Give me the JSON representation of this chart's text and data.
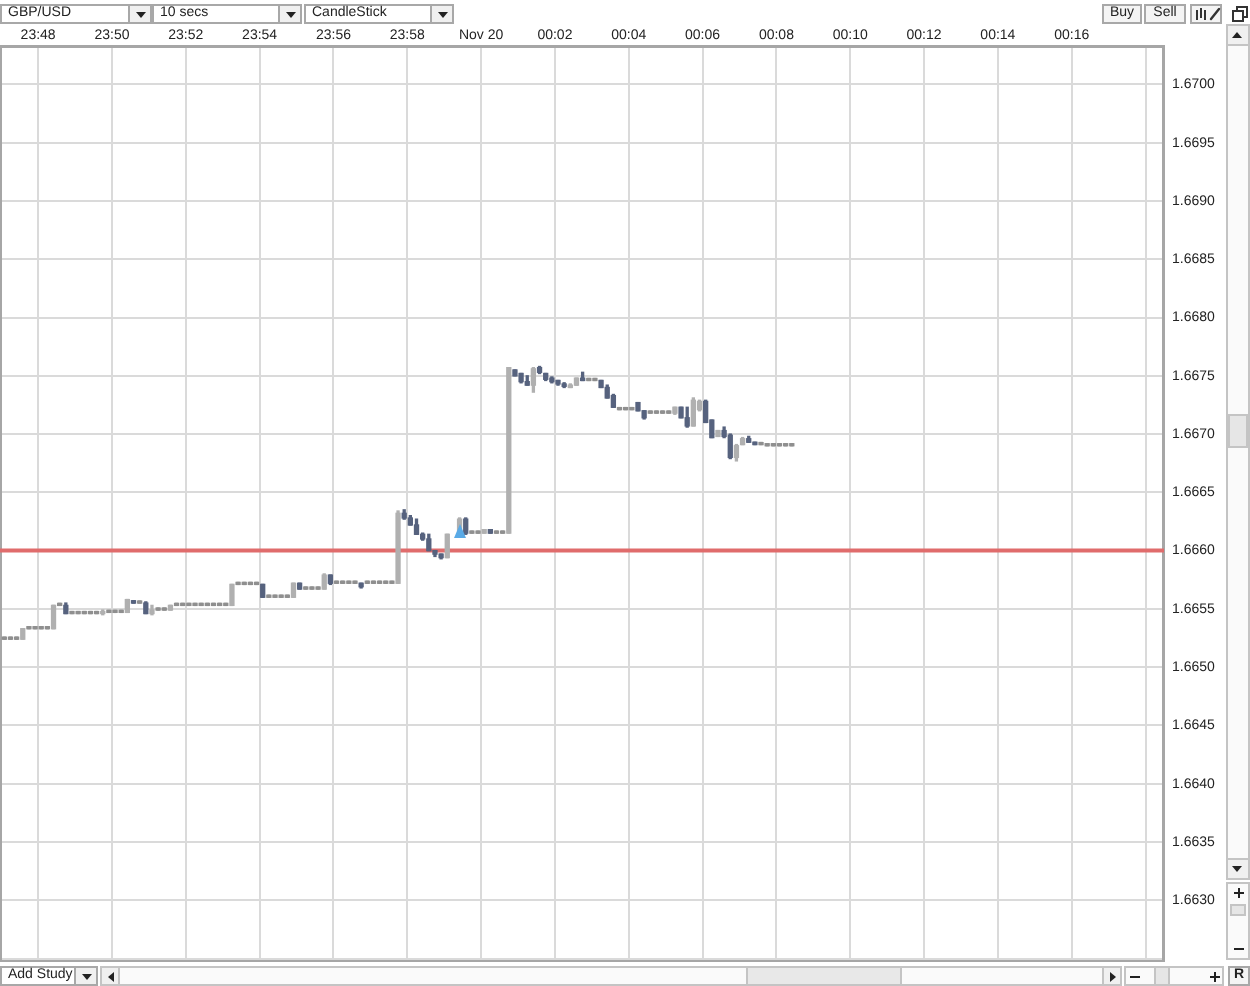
{
  "chart_data": {
    "type": "candlestick",
    "title": "GBP/USD",
    "annotations": [
      "10 secs",
      "CandleStick",
      "Buy",
      "Sell",
      "Add Study",
      "R"
    ],
    "x": [
      "--11-19T23:47:05",
      "--11-19T23:47:15",
      "--11-19T23:47:25",
      "--11-19T23:47:35",
      "--11-19T23:47:45",
      "--11-19T23:47:55",
      "--11-19T23:48:05",
      "--11-19T23:48:15",
      "--11-19T23:48:25",
      "--11-19T23:48:35",
      "--11-19T23:48:45",
      "--11-19T23:48:55",
      "--11-19T23:49:05",
      "--11-19T23:49:15",
      "--11-19T23:49:25",
      "--11-19T23:49:35",
      "--11-19T23:49:45",
      "--11-19T23:49:55",
      "--11-19T23:50:05",
      "--11-19T23:50:15",
      "--11-19T23:50:25",
      "--11-19T23:50:35",
      "--11-19T23:50:45",
      "--11-19T23:50:55",
      "--11-19T23:51:05",
      "--11-19T23:51:15",
      "--11-19T23:51:25",
      "--11-19T23:51:35",
      "--11-19T23:51:45",
      "--11-19T23:51:55",
      "--11-19T23:52:05",
      "--11-19T23:52:15",
      "--11-19T23:52:25",
      "--11-19T23:52:35",
      "--11-19T23:52:45",
      "--11-19T23:52:55",
      "--11-19T23:53:05",
      "--11-19T23:53:15",
      "--11-19T23:53:25",
      "--11-19T23:53:35",
      "--11-19T23:53:45",
      "--11-19T23:53:55",
      "--11-19T23:54:05",
      "--11-19T23:54:15",
      "--11-19T23:54:25",
      "--11-19T23:54:35",
      "--11-19T23:54:45",
      "--11-19T23:54:55",
      "--11-19T23:55:05",
      "--11-19T23:55:15",
      "--11-19T23:55:25",
      "--11-19T23:55:35",
      "--11-19T23:55:45",
      "--11-19T23:55:55",
      "--11-19T23:56:05",
      "--11-19T23:56:15",
      "--11-19T23:56:25",
      "--11-19T23:56:35",
      "--11-19T23:56:45",
      "--11-19T23:56:55",
      "--11-19T23:57:05",
      "--11-19T23:57:15",
      "--11-19T23:57:25",
      "--11-19T23:57:35",
      "--11-19T23:57:45",
      "--11-19T23:57:55",
      "--11-19T23:58:05",
      "--11-19T23:58:15",
      "--11-19T23:58:25",
      "--11-19T23:58:35",
      "--11-19T23:58:45",
      "--11-19T23:58:55",
      "--11-19T23:59:05",
      "--11-19T23:59:25",
      "--11-19T23:59:35",
      "--11-19T23:59:45",
      "--11-19T23:59:55",
      "--11-20T00:00:05",
      "--11-20T00:00:15",
      "--11-20T00:00:25",
      "--11-20T00:00:35",
      "--11-20T00:00:45",
      "--11-20T00:00:55",
      "--11-20T00:01:05",
      "--11-20T00:01:15",
      "--11-20T00:01:25",
      "--11-20T00:01:35",
      "--11-20T00:01:45",
      "--11-20T00:01:55",
      "--11-20T00:02:05",
      "--11-20T00:02:15",
      "--11-20T00:02:25",
      "--11-20T00:02:35",
      "--11-20T00:02:45",
      "--11-20T00:02:55",
      "--11-20T00:03:05",
      "--11-20T00:03:15",
      "--11-20T00:03:25",
      "--11-20T00:03:35",
      "--11-20T00:03:45",
      "--11-20T00:03:55",
      "--11-20T00:04:05",
      "--11-20T00:04:15",
      "--11-20T00:04:25",
      "--11-20T00:04:35",
      "--11-20T00:04:45",
      "--11-20T00:04:55",
      "--11-20T00:05:05",
      "--11-20T00:05:15",
      "--11-20T00:05:25",
      "--11-20T00:05:35",
      "--11-20T00:05:45",
      "--11-20T00:05:55",
      "--11-20T00:06:05",
      "--11-20T00:06:15",
      "--11-20T00:06:25",
      "--11-20T00:06:35",
      "--11-20T00:06:45",
      "--11-20T00:06:55",
      "--11-20T00:07:05",
      "--11-20T00:07:15",
      "--11-20T00:07:25",
      "--11-20T00:07:35",
      "--11-20T00:07:45",
      "--11-20T00:07:55",
      "--11-20T00:08:05",
      "--11-20T00:08:15",
      "--11-20T00:08:25"
    ],
    "ohlc": [
      [
        1.66524,
        1.66524,
        1.66524,
        1.66524
      ],
      [
        1.66524,
        1.66524,
        1.66524,
        1.66524
      ],
      [
        1.66524,
        1.66524,
        1.66524,
        1.66524
      ],
      [
        1.66524,
        1.66533,
        1.66524,
        1.66533
      ],
      [
        1.66533,
        1.66533,
        1.66533,
        1.66533
      ],
      [
        1.66533,
        1.66533,
        1.66533,
        1.66533
      ],
      [
        1.66533,
        1.66533,
        1.66533,
        1.66533
      ],
      [
        1.66533,
        1.66533,
        1.66533,
        1.66533
      ],
      [
        1.66533,
        1.66553,
        1.66533,
        1.66553
      ],
      [
        1.66553,
        1.66553,
        1.66553,
        1.66553
      ],
      [
        1.66553,
        1.66555,
        1.66546,
        1.66546
      ],
      [
        1.66546,
        1.66546,
        1.66546,
        1.66546
      ],
      [
        1.66546,
        1.66546,
        1.66546,
        1.66546
      ],
      [
        1.66546,
        1.66546,
        1.66546,
        1.66546
      ],
      [
        1.66546,
        1.66546,
        1.66546,
        1.66546
      ],
      [
        1.66546,
        1.66546,
        1.66546,
        1.66546
      ],
      [
        1.66546,
        1.66549,
        1.66545,
        1.66547
      ],
      [
        1.66547,
        1.66547,
        1.66547,
        1.66547
      ],
      [
        1.66547,
        1.66547,
        1.66547,
        1.66547
      ],
      [
        1.66547,
        1.66547,
        1.66547,
        1.66547
      ],
      [
        1.66547,
        1.66558,
        1.66547,
        1.66558
      ],
      [
        1.66557,
        1.66557,
        1.66555,
        1.66555
      ],
      [
        1.66555,
        1.66555,
        1.66555,
        1.66555
      ],
      [
        1.66555,
        1.66556,
        1.66546,
        1.66546
      ],
      [
        1.66546,
        1.66553,
        1.66545,
        1.66549
      ],
      [
        1.66549,
        1.66549,
        1.66549,
        1.66549
      ],
      [
        1.66549,
        1.66549,
        1.66549,
        1.66549
      ],
      [
        1.66549,
        1.66553,
        1.66549,
        1.66553
      ],
      [
        1.66553,
        1.66553,
        1.66553,
        1.66553
      ],
      [
        1.66553,
        1.66553,
        1.66553,
        1.66553
      ],
      [
        1.66553,
        1.66553,
        1.66553,
        1.66553
      ],
      [
        1.66553,
        1.66553,
        1.66553,
        1.66553
      ],
      [
        1.66553,
        1.66553,
        1.66553,
        1.66553
      ],
      [
        1.66553,
        1.66553,
        1.66553,
        1.66553
      ],
      [
        1.66553,
        1.66553,
        1.66553,
        1.66553
      ],
      [
        1.66553,
        1.66553,
        1.66553,
        1.66553
      ],
      [
        1.66553,
        1.66553,
        1.66553,
        1.66553
      ],
      [
        1.66553,
        1.66571,
        1.66553,
        1.66571
      ],
      [
        1.66571,
        1.66571,
        1.66571,
        1.66571
      ],
      [
        1.66571,
        1.66571,
        1.66571,
        1.66571
      ],
      [
        1.66571,
        1.66571,
        1.66571,
        1.66571
      ],
      [
        1.66571,
        1.66571,
        1.66571,
        1.66571
      ],
      [
        1.66571,
        1.66571,
        1.6656,
        1.6656
      ],
      [
        1.6656,
        1.6656,
        1.6656,
        1.6656
      ],
      [
        1.6656,
        1.6656,
        1.6656,
        1.6656
      ],
      [
        1.6656,
        1.6656,
        1.6656,
        1.6656
      ],
      [
        1.6656,
        1.6656,
        1.6656,
        1.6656
      ],
      [
        1.6656,
        1.66572,
        1.6656,
        1.66572
      ],
      [
        1.66572,
        1.66572,
        1.66567,
        1.66567
      ],
      [
        1.66567,
        1.66567,
        1.66567,
        1.66567
      ],
      [
        1.66567,
        1.66567,
        1.66567,
        1.66567
      ],
      [
        1.66567,
        1.66567,
        1.66567,
        1.66567
      ],
      [
        1.66567,
        1.6658,
        1.66567,
        1.66579
      ],
      [
        1.66579,
        1.66579,
        1.66571,
        1.66572
      ],
      [
        1.66572,
        1.66572,
        1.66572,
        1.66572
      ],
      [
        1.66572,
        1.66572,
        1.66572,
        1.66572
      ],
      [
        1.66572,
        1.66572,
        1.66572,
        1.66572
      ],
      [
        1.66572,
        1.66572,
        1.66572,
        1.66572
      ],
      [
        1.66572,
        1.66572,
        1.66568,
        1.66569
      ],
      [
        1.66572,
        1.66572,
        1.66572,
        1.66572
      ],
      [
        1.66572,
        1.66572,
        1.66572,
        1.66572
      ],
      [
        1.66572,
        1.66572,
        1.66572,
        1.66572
      ],
      [
        1.66572,
        1.66572,
        1.66572,
        1.66572
      ],
      [
        1.66572,
        1.66572,
        1.66572,
        1.66572
      ],
      [
        1.66572,
        1.66634,
        1.66572,
        1.66632
      ],
      [
        1.66632,
        1.66635,
        1.66627,
        1.66628
      ],
      [
        1.66628,
        1.6663,
        1.66622,
        1.66622
      ],
      [
        1.66622,
        1.66627,
        1.66614,
        1.66614
      ],
      [
        1.66614,
        1.66615,
        1.66609,
        1.6661
      ],
      [
        1.6661,
        1.66614,
        1.666,
        1.666
      ],
      [
        1.666,
        1.666,
        1.66595,
        1.66597
      ],
      [
        1.66597,
        1.66597,
        1.66593,
        1.66594
      ],
      [
        1.66594,
        1.66614,
        1.66594,
        1.66614
      ],
      [
        1.66614,
        1.66628,
        1.66614,
        1.66627
      ],
      [
        1.66627,
        1.66628,
        1.66614,
        1.66615
      ],
      [
        1.66615,
        1.66615,
        1.66615,
        1.66615
      ],
      [
        1.66615,
        1.66615,
        1.66615,
        1.66615
      ],
      [
        1.66615,
        1.66618,
        1.66615,
        1.66618
      ],
      [
        1.66618,
        1.66618,
        1.66615,
        1.66615
      ],
      [
        1.66615,
        1.66615,
        1.66615,
        1.66615
      ],
      [
        1.66615,
        1.66615,
        1.66615,
        1.66615
      ],
      [
        1.66615,
        1.66757,
        1.66615,
        1.66757
      ],
      [
        1.66755,
        1.66755,
        1.6675,
        1.6675
      ],
      [
        1.66752,
        1.66752,
        1.66744,
        1.66745
      ],
      [
        1.66745,
        1.6675,
        1.66742,
        1.66742
      ],
      [
        1.66742,
        1.66757,
        1.66736,
        1.66756
      ],
      [
        1.66757,
        1.66758,
        1.66752,
        1.66753
      ],
      [
        1.66752,
        1.66752,
        1.66746,
        1.66747
      ],
      [
        1.66748,
        1.66749,
        1.66744,
        1.66745
      ],
      [
        1.66746,
        1.66746,
        1.66742,
        1.66743
      ],
      [
        1.66743,
        1.66744,
        1.6674,
        1.66741
      ],
      [
        1.6674,
        1.66743,
        1.6674,
        1.66742
      ],
      [
        1.66742,
        1.66748,
        1.66742,
        1.66748
      ],
      [
        1.66748,
        1.66753,
        1.66746,
        1.66746
      ],
      [
        1.66746,
        1.66746,
        1.66746,
        1.66746
      ],
      [
        1.66746,
        1.66746,
        1.66746,
        1.66746
      ],
      [
        1.66746,
        1.66746,
        1.6674,
        1.6674
      ],
      [
        1.6674,
        1.66742,
        1.66731,
        1.66731
      ],
      [
        1.66733,
        1.66734,
        1.66723,
        1.66723
      ],
      [
        1.66721,
        1.66721,
        1.66721,
        1.66721
      ],
      [
        1.66721,
        1.66721,
        1.66721,
        1.66721
      ],
      [
        1.66721,
        1.66721,
        1.66721,
        1.66721
      ],
      [
        1.66727,
        1.66727,
        1.6672,
        1.6672
      ],
      [
        1.6672,
        1.6672,
        1.66713,
        1.66714
      ],
      [
        1.66718,
        1.66718,
        1.66718,
        1.66718
      ],
      [
        1.66718,
        1.66718,
        1.66718,
        1.66718
      ],
      [
        1.66718,
        1.66718,
        1.66718,
        1.66718
      ],
      [
        1.66718,
        1.66718,
        1.66718,
        1.66718
      ],
      [
        1.66718,
        1.66723,
        1.66717,
        1.66723
      ],
      [
        1.66723,
        1.66723,
        1.66714,
        1.66714
      ],
      [
        1.66714,
        1.66723,
        1.66706,
        1.66707
      ],
      [
        1.66707,
        1.66731,
        1.66707,
        1.66729
      ],
      [
        1.66721,
        1.66729,
        1.6672,
        1.66728
      ],
      [
        1.66728,
        1.66729,
        1.6671,
        1.6671
      ],
      [
        1.66712,
        1.66712,
        1.66697,
        1.66697
      ],
      [
        1.66698,
        1.66703,
        1.66698,
        1.66703
      ],
      [
        1.66703,
        1.66706,
        1.66697,
        1.66698
      ],
      [
        1.66699,
        1.667,
        1.66679,
        1.6668
      ],
      [
        1.6668,
        1.66691,
        1.66677,
        1.6669
      ],
      [
        1.66691,
        1.66697,
        1.66691,
        1.66696
      ],
      [
        1.66696,
        1.66698,
        1.66693,
        1.66693
      ],
      [
        1.66693,
        1.66693,
        1.66691,
        1.66691
      ],
      [
        1.66691,
        1.66691,
        1.66691,
        1.66691
      ],
      [
        1.6669,
        1.6669,
        1.6669,
        1.6669
      ],
      [
        1.6669,
        1.6669,
        1.6669,
        1.6669
      ],
      [
        1.6669,
        1.6669,
        1.6669,
        1.6669
      ],
      [
        1.6669,
        1.6669,
        1.6669,
        1.6669
      ],
      [
        1.6669,
        1.6669,
        1.6669,
        1.6669
      ]
    ],
    "colors": [
      "#8f8f8f",
      "#8f8f8f",
      "#8f8f8f",
      "#b0b0b0",
      "#8f8f8f",
      "#8f8f8f",
      "#8f8f8f",
      "#8f8f8f",
      "#b0b0b0",
      "#8f8f8f",
      "#56627e",
      "#8f8f8f",
      "#8f8f8f",
      "#8f8f8f",
      "#8f8f8f",
      "#8f8f8f",
      "#b0b0b0",
      "#8f8f8f",
      "#8f8f8f",
      "#8f8f8f",
      "#b0b0b0",
      "#56627e",
      "#8f8f8f",
      "#56627e",
      "#b0b0b0",
      "#8f8f8f",
      "#8f8f8f",
      "#b0b0b0",
      "#8f8f8f",
      "#8f8f8f",
      "#8f8f8f",
      "#8f8f8f",
      "#8f8f8f",
      "#8f8f8f",
      "#8f8f8f",
      "#8f8f8f",
      "#8f8f8f",
      "#b0b0b0",
      "#8f8f8f",
      "#8f8f8f",
      "#8f8f8f",
      "#8f8f8f",
      "#56627e",
      "#8f8f8f",
      "#8f8f8f",
      "#8f8f8f",
      "#8f8f8f",
      "#b0b0b0",
      "#56627e",
      "#8f8f8f",
      "#8f8f8f",
      "#8f8f8f",
      "#b0b0b0",
      "#56627e",
      "#8f8f8f",
      "#8f8f8f",
      "#8f8f8f",
      "#8f8f8f",
      "#56627e",
      "#8f8f8f",
      "#8f8f8f",
      "#8f8f8f",
      "#8f8f8f",
      "#8f8f8f",
      "#b0b0b0",
      "#56627e",
      "#56627e",
      "#56627e",
      "#56627e",
      "#56627e",
      "#56627e",
      "#56627e",
      "#b0b0b0",
      "#b0b0b0",
      "#56627e",
      "#8f8f8f",
      "#8f8f8f",
      "#b0b0b0",
      "#56627e",
      "#8f8f8f",
      "#8f8f8f",
      "#b0b0b0",
      "#56627e",
      "#56627e",
      "#56627e",
      "#b0b0b0",
      "#56627e",
      "#56627e",
      "#56627e",
      "#56627e",
      "#56627e",
      "#b0b0b0",
      "#b0b0b0",
      "#56627e",
      "#8f8f8f",
      "#8f8f8f",
      "#56627e",
      "#56627e",
      "#56627e",
      "#8f8f8f",
      "#8f8f8f",
      "#8f8f8f",
      "#56627e",
      "#56627e",
      "#8f8f8f",
      "#8f8f8f",
      "#8f8f8f",
      "#8f8f8f",
      "#b0b0b0",
      "#56627e",
      "#56627e",
      "#b0b0b0",
      "#b0b0b0",
      "#56627e",
      "#56627e",
      "#b0b0b0",
      "#56627e",
      "#56627e",
      "#b0b0b0",
      "#b0b0b0",
      "#56627e",
      "#56627e",
      "#8f8f8f",
      "#8f8f8f",
      "#8f8f8f",
      "#8f8f8f",
      "#8f8f8f",
      "#8f8f8f"
    ],
    "xlim": [
      "--11-19T23:46:58",
      "--11-20T00:18:30"
    ],
    "xticks": [
      {
        "value": "--11-19T23:48",
        "label": "23:48"
      },
      {
        "value": "--11-19T23:50",
        "label": "23:50"
      },
      {
        "value": "--11-19T23:52",
        "label": "23:52"
      },
      {
        "value": "--11-19T23:54",
        "label": "23:54"
      },
      {
        "value": "--11-19T23:56",
        "label": "23:56"
      },
      {
        "value": "--11-19T23:58",
        "label": "23:58"
      },
      {
        "value": "--11-20T00:00",
        "label": "Nov 20"
      },
      {
        "value": "--11-20T00:02",
        "label": "00:02"
      },
      {
        "value": "--11-20T00:04",
        "label": "00:04"
      },
      {
        "value": "--11-20T00:06",
        "label": "00:06"
      },
      {
        "value": "--11-20T00:08",
        "label": "00:08"
      },
      {
        "value": "--11-20T00:10",
        "label": "00:10"
      },
      {
        "value": "--11-20T00:12",
        "label": "00:12"
      },
      {
        "value": "--11-20T00:14",
        "label": "00:14"
      },
      {
        "value": "--11-20T00:16",
        "label": "00:16"
      },
      {
        "value": "--11-20T00:18",
        "label": null
      }
    ],
    "ylim": [
      1.66247,
      1.67033
    ],
    "yticks": [
      {
        "value": 1.6625,
        "label": null
      },
      {
        "value": 1.663,
        "label": "1.6630"
      },
      {
        "value": 1.6635,
        "label": "1.6635"
      },
      {
        "value": 1.664,
        "label": "1.6640"
      },
      {
        "value": 1.6645,
        "label": "1.6645"
      },
      {
        "value": 1.665,
        "label": "1.6650"
      },
      {
        "value": 1.6655,
        "label": "1.6655"
      },
      {
        "value": 1.666,
        "label": "1.6660"
      },
      {
        "value": 1.6665,
        "label": "1.6665"
      },
      {
        "value": 1.667,
        "label": "1.6670"
      },
      {
        "value": 1.6675,
        "label": "1.6675"
      },
      {
        "value": 1.668,
        "label": "1.6680"
      },
      {
        "value": 1.6685,
        "label": "1.6685"
      },
      {
        "value": 1.669,
        "label": "1.6690"
      },
      {
        "value": 1.6695,
        "label": "1.6695"
      },
      {
        "value": 1.67,
        "label": "1.6700"
      }
    ],
    "ref_lines": [
      {
        "axis": "y",
        "value": 1.666,
        "color": "#e06c6c"
      }
    ],
    "grid": true
  }
}
